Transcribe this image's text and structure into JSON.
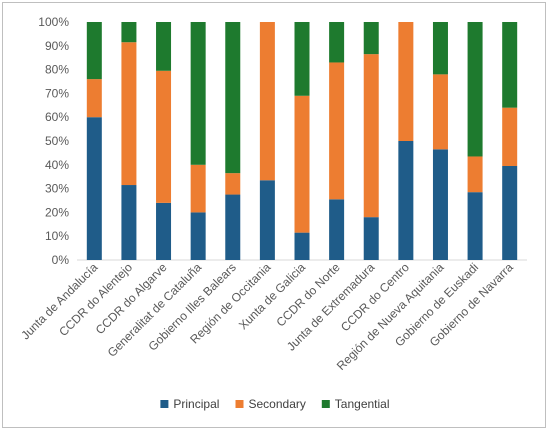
{
  "chart_data": {
    "type": "bar",
    "stacked": "percent",
    "categories": [
      "Junta de Andalucía",
      "CCDR do Alentejo",
      "CCDR do Algarve",
      "Generalitat de Cataluña",
      "Gobierno Illes Balears",
      "Región de Occitania",
      "Xunta de Galicia",
      "CCDR do Norte",
      "Junta de Extremadura",
      "CCDR do Centro",
      "Región de Nueva Aquitania",
      "Gobierno de Euskadi",
      "Gobierno de Navarra"
    ],
    "series": [
      {
        "name": "Principal",
        "color": "#1f5c89",
        "values": [
          60,
          31.5,
          24,
          20,
          27.5,
          33.5,
          11.5,
          25.5,
          18,
          50,
          46.5,
          28.5,
          39.5
        ]
      },
      {
        "name": "Secondary",
        "color": "#ed7d31",
        "values": [
          16,
          60,
          55.5,
          20,
          9,
          66.5,
          57.5,
          57.5,
          68.5,
          50,
          31.5,
          15,
          24.5
        ]
      },
      {
        "name": "Tangential",
        "color": "#1e7a2e",
        "values": [
          24,
          8.5,
          20.5,
          60,
          63.5,
          0,
          31,
          17,
          13.5,
          0,
          22,
          56.5,
          36
        ]
      }
    ],
    "yticks": [
      "0%",
      "10%",
      "20%",
      "30%",
      "40%",
      "50%",
      "60%",
      "70%",
      "80%",
      "90%",
      "100%"
    ],
    "ylim": [
      0,
      100
    ],
    "grid": false,
    "legend_position": "bottom"
  }
}
